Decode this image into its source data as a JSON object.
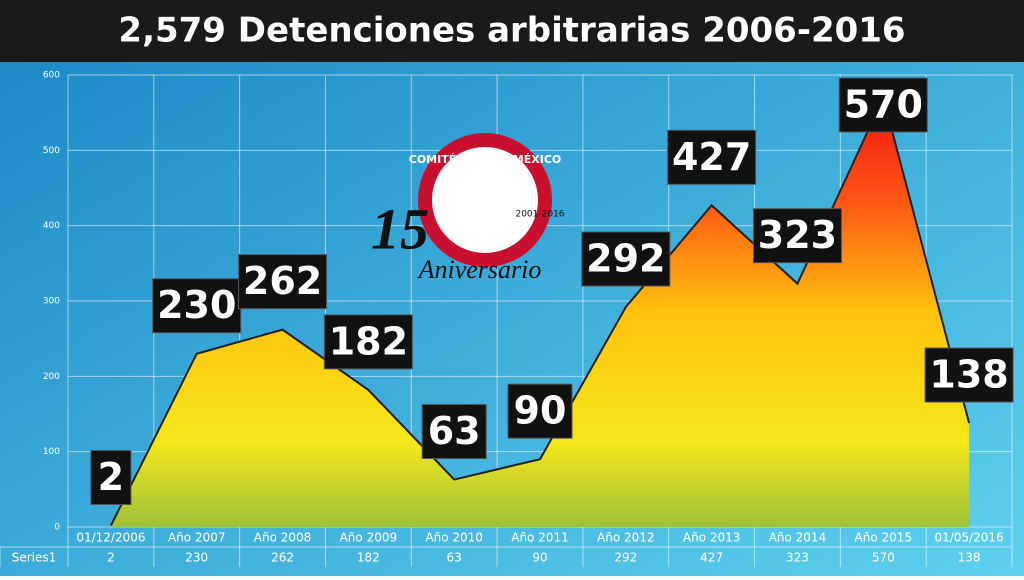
{
  "chart_data": {
    "type": "area",
    "title": "2,579 Detenciones arbitrarias 2006-2016",
    "logo": {
      "name": "COMITÉ CEREZO MÉXICO",
      "number": "15",
      "word": "Aniversario",
      "years": "2001-2016"
    },
    "categories": [
      "01/12/2006",
      "Año 2007",
      "Año 2008",
      "Año 2009",
      "Año 2010",
      "Año 2011",
      "Año 2012",
      "Año 2013",
      "Año 2014",
      "Año 2015",
      "01/05/2016"
    ],
    "series": [
      {
        "name": "Series1",
        "values": [
          2,
          230,
          262,
          182,
          63,
          90,
          292,
          427,
          323,
          570,
          138
        ]
      }
    ],
    "ylim": [
      0,
      600
    ],
    "yticks": [
      0,
      100,
      200,
      300,
      400,
      500,
      600
    ],
    "grid": true
  }
}
